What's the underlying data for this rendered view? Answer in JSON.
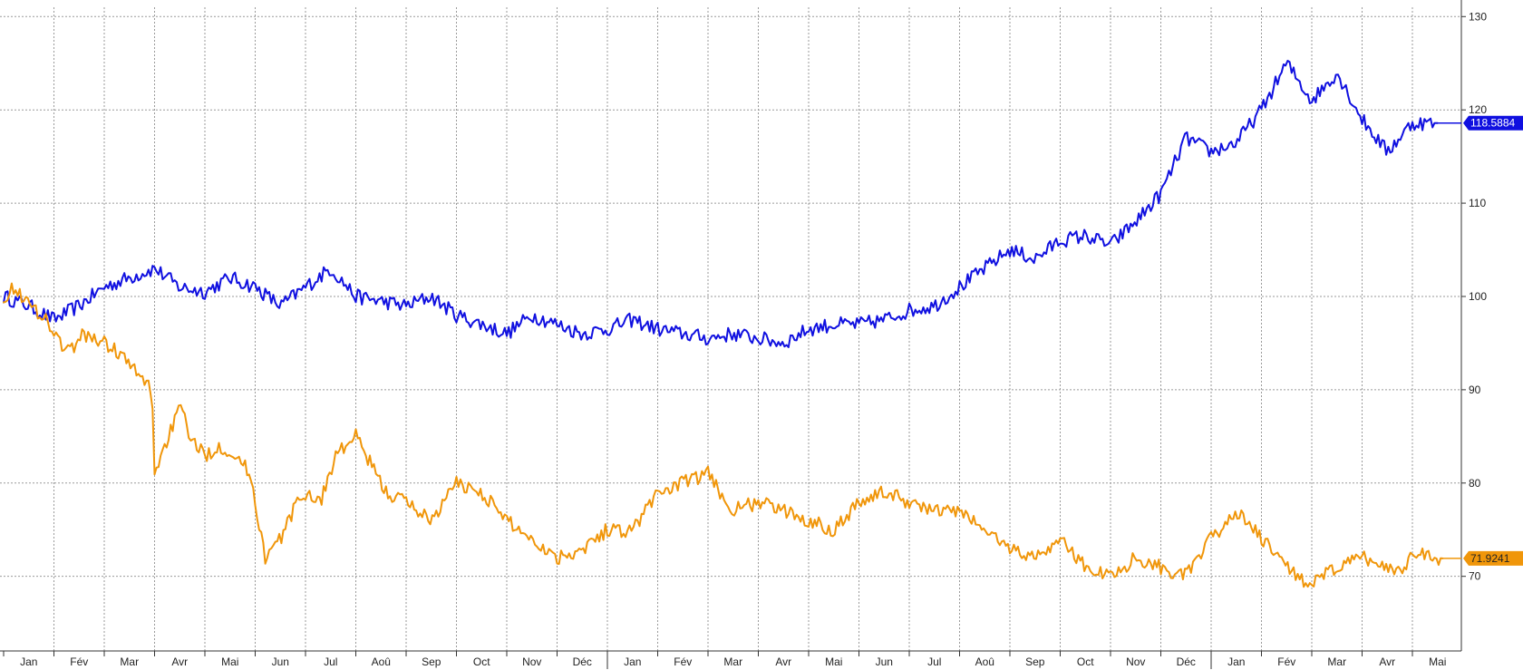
{
  "chart_data": {
    "type": "line",
    "title": "",
    "xlabel": "",
    "ylabel": "",
    "ylim": [
      62,
      131
    ],
    "yticks": [
      70,
      80,
      90,
      100,
      110,
      120,
      130
    ],
    "grid": true,
    "x_axis_labels": [
      "Jan",
      "Fév",
      "Mar",
      "Avr",
      "Mai",
      "Jun",
      "Jul",
      "Aoû",
      "Sep",
      "Oct",
      "Nov",
      "Déc",
      "Jan",
      "Fév",
      "Mar",
      "Avr",
      "Mai",
      "Jun",
      "Jul",
      "Aoû",
      "Sep",
      "Oct",
      "Nov",
      "Déc",
      "Jan",
      "Fév",
      "Mar",
      "Avr",
      "Mai"
    ],
    "series": [
      {
        "color": "#1010e0",
        "last_value_label": "118.5884",
        "months": [
          0,
          0.5,
          1,
          1.5,
          2,
          2.5,
          3,
          3.5,
          4,
          4.5,
          5,
          5.5,
          6,
          6.5,
          7,
          7.5,
          8,
          8.5,
          9,
          9.5,
          10,
          10.5,
          11,
          11.5,
          12,
          12.5,
          13,
          13.5,
          14,
          14.5,
          15,
          15.5,
          16,
          16.5,
          17,
          17.5,
          18,
          18.5,
          19,
          19.5,
          20,
          20.5,
          21,
          21.5,
          22,
          22.5,
          23,
          23.5,
          24,
          24.5,
          25,
          25.5,
          26,
          26.5,
          27,
          27.5,
          28,
          28.5
        ],
        "values": [
          100,
          99,
          97.5,
          99,
          101,
          102,
          103,
          101,
          100.5,
          102,
          101,
          99,
          101,
          103,
          100,
          99.5,
          99,
          100,
          98,
          97,
          96,
          98,
          97,
          96,
          96.5,
          97.5,
          96.5,
          96,
          95.5,
          96,
          95.5,
          95,
          96.5,
          97,
          97,
          97.5,
          98.5,
          99,
          101,
          103,
          105,
          104,
          106,
          106.5,
          105.5,
          108,
          111,
          117,
          115.5,
          116.5,
          120,
          125,
          121,
          124,
          119,
          115.5,
          118.6,
          118.5884
        ]
      },
      {
        "color": "#f0960a",
        "last_value_label": "71.9241",
        "months": [
          0,
          0.25,
          0.5,
          0.8,
          1,
          1.3,
          1.6,
          2,
          2.3,
          2.6,
          2.95,
          3,
          3.2,
          3.5,
          3.8,
          4,
          4.3,
          4.6,
          4.9,
          5.2,
          5.5,
          5.75,
          6,
          6.3,
          6.6,
          7,
          7.3,
          7.6,
          8,
          8.5,
          9,
          9.5,
          10,
          10.5,
          11,
          11.5,
          12,
          12.5,
          13,
          13.5,
          14,
          14.5,
          15,
          15.5,
          16,
          16.5,
          17,
          17.5,
          18,
          18.5,
          19,
          19.5,
          20,
          20.5,
          21,
          21.5,
          22,
          22.5,
          23,
          23.5,
          24,
          24.5,
          25,
          25.5,
          26,
          26.5,
          27,
          27.5,
          27.8,
          28,
          28.3,
          28.6
        ],
        "values": [
          100,
          101,
          99,
          98,
          96,
          94,
          96,
          95,
          94,
          92,
          90,
          81,
          84,
          88,
          84,
          83,
          84,
          83,
          81,
          72,
          74,
          77,
          79,
          78,
          83,
          85,
          82,
          79,
          78,
          76,
          80,
          79,
          76,
          74,
          72,
          73,
          75,
          75,
          79,
          80,
          81,
          77,
          78,
          77,
          76,
          75,
          78,
          79,
          78,
          77,
          77,
          75,
          73,
          72,
          74,
          71,
          70,
          72,
          71,
          70,
          74,
          77,
          74,
          71,
          69,
          71,
          72,
          71,
          70.5,
          73,
          72,
          71.9241
        ]
      }
    ]
  }
}
